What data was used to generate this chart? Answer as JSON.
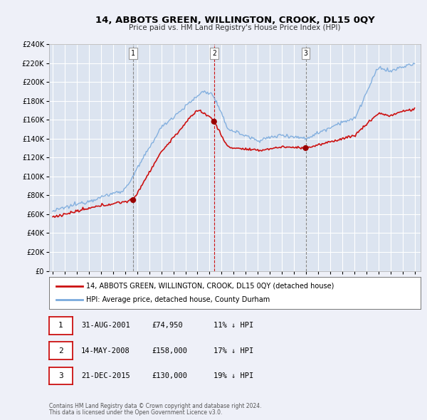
{
  "title": "14, ABBOTS GREEN, WILLINGTON, CROOK, DL15 0QY",
  "subtitle": "Price paid vs. HM Land Registry's House Price Index (HPI)",
  "bg_color": "#eef0f8",
  "plot_bg_color": "#dce4f0",
  "grid_color": "#ffffff",
  "ylim": [
    0,
    240000
  ],
  "yticks": [
    0,
    20000,
    40000,
    60000,
    80000,
    100000,
    120000,
    140000,
    160000,
    180000,
    200000,
    220000,
    240000
  ],
  "ytick_labels": [
    "£0",
    "£20K",
    "£40K",
    "£60K",
    "£80K",
    "£100K",
    "£120K",
    "£140K",
    "£160K",
    "£180K",
    "£200K",
    "£220K",
    "£240K"
  ],
  "xlim_start": 1994.7,
  "xlim_end": 2025.5,
  "xticks": [
    1995,
    1996,
    1997,
    1998,
    1999,
    2000,
    2001,
    2002,
    2003,
    2004,
    2005,
    2006,
    2007,
    2008,
    2009,
    2010,
    2011,
    2012,
    2013,
    2014,
    2015,
    2016,
    2017,
    2018,
    2019,
    2020,
    2021,
    2022,
    2023,
    2024,
    2025
  ],
  "red_line_color": "#cc1111",
  "blue_line_color": "#7aaadd",
  "marker_color": "#990000",
  "sale1_x": 2001.667,
  "sale1_y": 74950,
  "sale2_x": 2008.375,
  "sale2_y": 158000,
  "sale3_x": 2015.972,
  "sale3_y": 130000,
  "legend_label_red": "14, ABBOTS GREEN, WILLINGTON, CROOK, DL15 0QY (detached house)",
  "legend_label_blue": "HPI: Average price, detached house, County Durham",
  "table_row1": [
    "1",
    "31-AUG-2001",
    "£74,950",
    "11% ↓ HPI"
  ],
  "table_row2": [
    "2",
    "14-MAY-2008",
    "£158,000",
    "17% ↓ HPI"
  ],
  "table_row3": [
    "3",
    "21-DEC-2015",
    "£130,000",
    "19% ↓ HPI"
  ],
  "footer1": "Contains HM Land Registry data © Crown copyright and database right 2024.",
  "footer2": "This data is licensed under the Open Government Licence v3.0."
}
